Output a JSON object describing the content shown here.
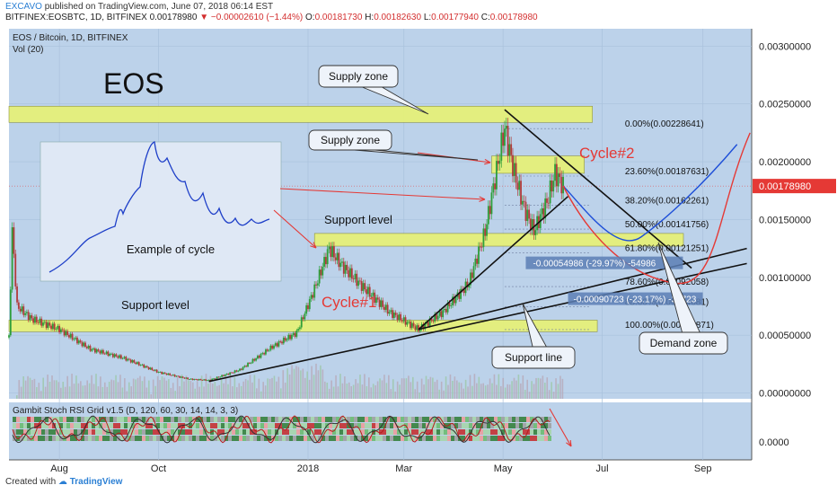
{
  "header": {
    "author": "EXCAVO",
    "published": "published on TradingView.com, June 07, 2018 06:14 EST",
    "symbol": "BITFINEX:EOSBTC, 1D, BITFINEX",
    "last": "0.00178980",
    "change": "−0.00002610 (−1.44%)",
    "o_label": "O:",
    "o": "0.00181730",
    "h_label": "H:",
    "h": "0.00182630",
    "l_label": "L:",
    "l": "0.00177940",
    "c_label": "C:",
    "c": "0.00178980"
  },
  "pane_title": "EOS / Bitcoin, 1D, BITFINEX",
  "vol_label": "Vol (20)",
  "big_title": "EOS",
  "indicator_title": "Gambit Stoch RSI Grid v1.5 (D, 120, 60, 30, 14, 14, 3, 3)",
  "footer": {
    "created": "Created with",
    "brand": "TradingView"
  },
  "colors": {
    "pane_bg": "#bcd2ea",
    "zone_fill": "#e6f07a",
    "up_candle": "#2e9e3a",
    "down_candle": "#b23b3b",
    "last_price": "#e53935",
    "arrow_red": "#e53935",
    "projection_blue": "#1e4fd8",
    "projection_red": "#e53935"
  },
  "chart_data": {
    "type": "candlestick",
    "title": "EOS / Bitcoin, 1D, BITFINEX",
    "x_ticks": [
      "Aug",
      "Oct",
      "2018",
      "Mar",
      "May",
      "Jul",
      "Sep"
    ],
    "y_ticks": [
      "0.00300000",
      "0.00250000",
      "0.00200000",
      "0.00150000",
      "0.00100000",
      "0.00050000",
      "0.00000000"
    ],
    "indicator_y_tick": "0.0000",
    "ylim": [
      -5e-05,
      0.00315
    ],
    "last_price_label": "0.00178980",
    "price_path_approx": [
      [
        "2017-07-01",
        0.00048
      ],
      [
        "2017-07-03",
        0.0014
      ],
      [
        "2017-07-06",
        0.00075
      ],
      [
        "2017-07-15",
        0.00064
      ],
      [
        "2017-08-01",
        0.00055
      ],
      [
        "2017-08-20",
        0.00038
      ],
      [
        "2017-09-10",
        0.0003
      ],
      [
        "2017-10-01",
        0.00018
      ],
      [
        "2017-10-20",
        0.00012
      ],
      [
        "2017-11-01",
        0.00011
      ],
      [
        "2017-11-20",
        0.0002
      ],
      [
        "2017-12-10",
        0.0004
      ],
      [
        "2017-12-25",
        0.00052
      ],
      [
        "2018-01-05",
        0.0009
      ],
      [
        "2018-01-14",
        0.00125
      ],
      [
        "2018-01-22",
        0.0011
      ],
      [
        "2018-02-05",
        0.0009
      ],
      [
        "2018-02-20",
        0.0007
      ],
      [
        "2018-03-10",
        0.00055
      ],
      [
        "2018-03-25",
        0.0007
      ],
      [
        "2018-04-10",
        0.00095
      ],
      [
        "2018-04-20",
        0.0014
      ],
      [
        "2018-04-28",
        0.002
      ],
      [
        "2018-05-02",
        0.00229
      ],
      [
        "2018-05-08",
        0.0019
      ],
      [
        "2018-05-14",
        0.0016
      ],
      [
        "2018-05-20",
        0.0014
      ],
      [
        "2018-05-28",
        0.00165
      ],
      [
        "2018-06-02",
        0.0019
      ],
      [
        "2018-06-07",
        0.00179
      ]
    ],
    "fibonacci": [
      {
        "label": "0.00%(0.00228641)",
        "value": 0.00228641
      },
      {
        "label": "23.60%(0.00187631)",
        "value": 0.00187631
      },
      {
        "label": "38.20%(0.00162261)",
        "value": 0.00162261
      },
      {
        "label": "50.00%(0.00141756)",
        "value": 0.00141756
      },
      {
        "label": "61.80%(0.00121251)",
        "value": 0.00121251
      },
      {
        "label": "78.60%(0.00092058)",
        "value": 0.00092058
      },
      {
        "label": "88.60%(0.00074681)",
        "value": 0.00074681
      },
      {
        "label": "100.00%(0.00054871)",
        "value": 0.00054871
      }
    ],
    "zones": [
      {
        "name": "top-supply-zone",
        "from": "2017-07-01",
        "to": "2018-06-25",
        "low": 0.00234,
        "high": 0.00248
      },
      {
        "name": "upper-supply-zone",
        "from": "2018-04-24",
        "to": "2018-06-20",
        "low": 0.0019,
        "high": 0.00205
      },
      {
        "name": "support-zone-mid",
        "from": "2018-01-05",
        "to": "2018-08-20",
        "low": 0.00127,
        "high": 0.00138
      },
      {
        "name": "support-zone-low",
        "from": "2017-07-01",
        "to": "2018-06-28",
        "low": 0.00053,
        "high": 0.00063
      }
    ],
    "measures": [
      {
        "label": "-0.00054986 (-29.97%) -54986"
      },
      {
        "label": "-0.00090723 (-23.17%) -30723"
      }
    ],
    "annotations": [
      "EOS",
      "Supply zone",
      "Supply zone",
      "Support level",
      "Support level",
      "Cycle#1",
      "Cycle#2",
      "Example of cycle",
      "Demand zone",
      "Support line"
    ],
    "grid": true,
    "legend": "none"
  }
}
